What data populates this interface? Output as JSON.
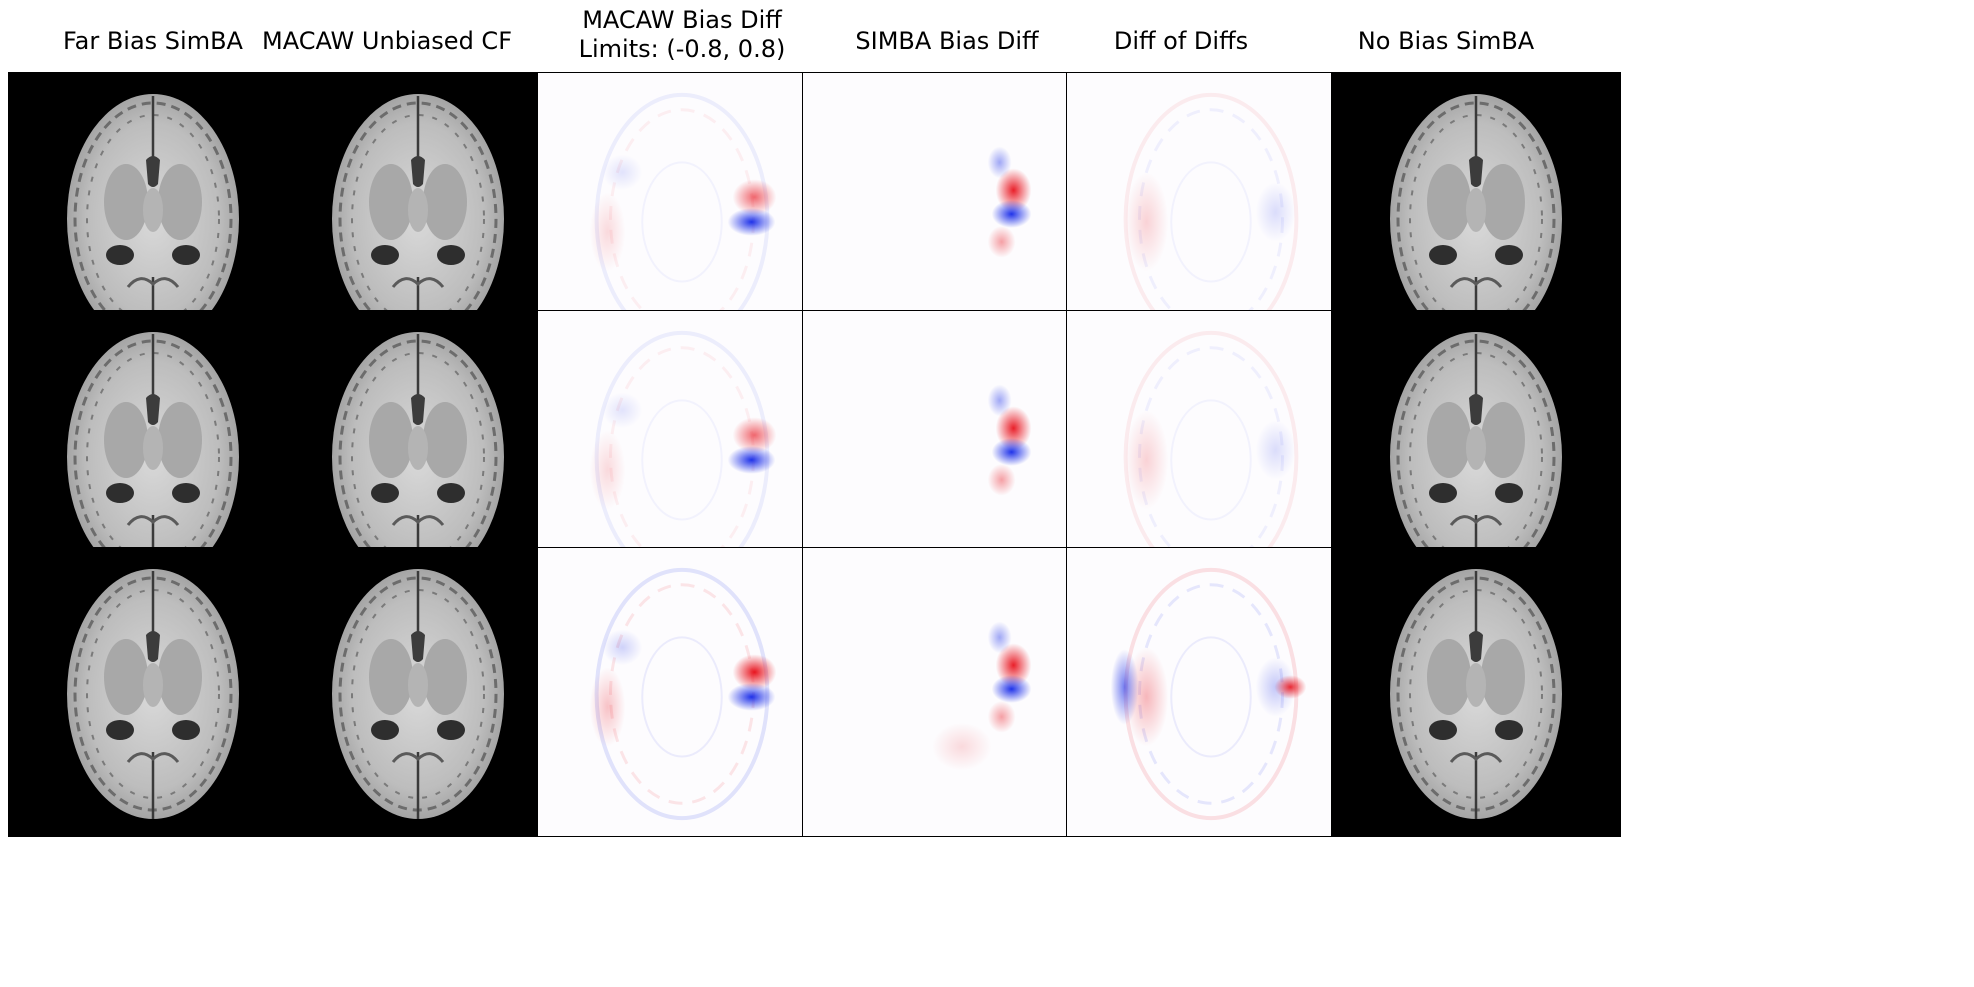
{
  "columns": [
    {
      "id": "far-bias-simba",
      "title": "Far Bias SimBA",
      "kind": "mri"
    },
    {
      "id": "macaw-unbiased-cf",
      "title": "MACAW Unbiased CF",
      "kind": "mri"
    },
    {
      "id": "macaw-bias-diff",
      "title": "MACAW Bias Diff\nLimits: (-0.8, 0.8)",
      "kind": "diff"
    },
    {
      "id": "simba-bias-diff",
      "title": "SIMBA Bias Diff",
      "kind": "diff"
    },
    {
      "id": "diff-of-diffs",
      "title": "Diff of Diffs",
      "kind": "diff"
    },
    {
      "id": "no-bias-simba",
      "title": "No Bias SimBA",
      "kind": "mri"
    }
  ],
  "colors": {
    "positive": "#e8141e",
    "negative": "#1428e8",
    "background": "#ffffff",
    "frame": "#000000"
  },
  "rows": 3
}
